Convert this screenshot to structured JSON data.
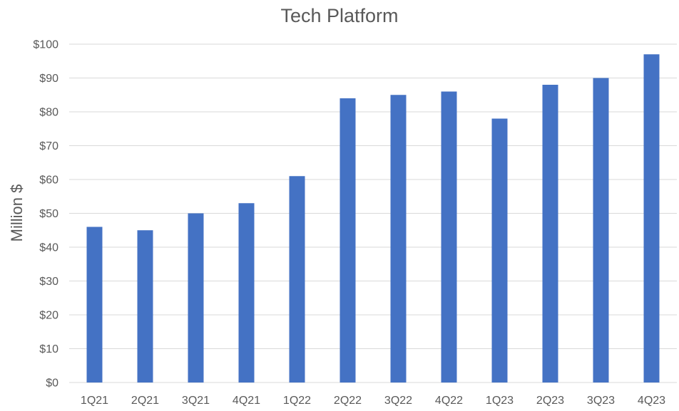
{
  "chart_data": {
    "type": "bar",
    "title": "Tech Platform",
    "xlabel": "",
    "ylabel": "Million $",
    "categories": [
      "1Q21",
      "2Q21",
      "3Q21",
      "4Q21",
      "1Q22",
      "2Q22",
      "3Q22",
      "4Q22",
      "1Q23",
      "2Q23",
      "3Q23",
      "4Q23"
    ],
    "values": [
      46,
      45,
      50,
      53,
      61,
      84,
      85,
      86,
      78,
      88,
      90,
      97
    ],
    "ylim": [
      0,
      100
    ],
    "ytick_step": 10,
    "ytick_labels": [
      "$0",
      "$10",
      "$20",
      "$30",
      "$40",
      "$50",
      "$60",
      "$70",
      "$80",
      "$90",
      "$100"
    ],
    "grid": true,
    "legend": "none",
    "bar_color": "#4472c4"
  }
}
